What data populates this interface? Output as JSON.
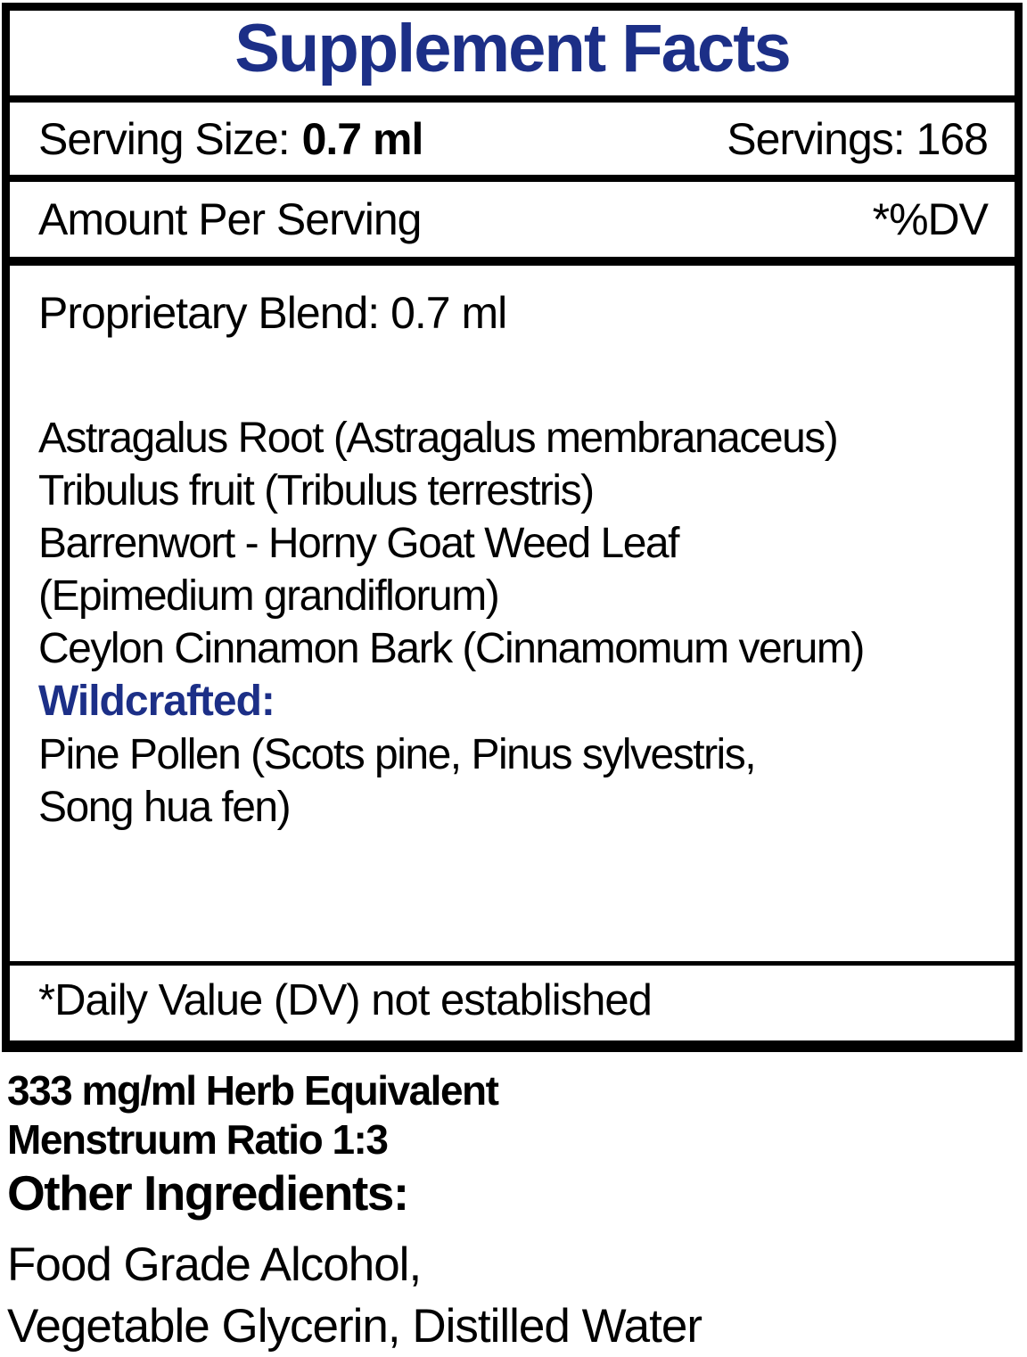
{
  "label": {
    "title": "Supplement Facts",
    "serving_row": {
      "label": "Serving Size:",
      "value": "0.7 ml",
      "servings": "Servings: 168"
    },
    "header_row": {
      "left": "Amount Per Serving",
      "right": "*%DV"
    },
    "blend_title": "Proprietary Blend: 0.7 ml",
    "ingredients": [
      "Astragalus Root (Astragalus membranaceus)",
      "Tribulus fruit (Tribulus terrestris)",
      "Barrenwort - Horny Goat Weed Leaf",
      "(Epimedium grandiflorum)",
      "Ceylon Cinnamon Bark (Cinnamomum verum)"
    ],
    "wildcrafted_heading": "Wildcrafted:",
    "wildcrafted_items": [
      "Pine Pollen (Scots pine, Pinus sylvestris,",
      "Song hua fen)"
    ],
    "footnote": "*Daily Value (DV) not established"
  },
  "below_label": {
    "herb_equivalent": "333 mg/ml Herb Equivalent",
    "menstruum_ratio": "Menstruum Ratio 1:3",
    "other_ingredients_heading": "Other Ingredients:",
    "other_ingredients_lines": [
      "Food Grade Alcohol,",
      "Vegetable Glycerin, Distilled Water"
    ]
  },
  "colors": {
    "accent_blue": "#1c2f87",
    "text": "#000000",
    "background": "#ffffff"
  }
}
